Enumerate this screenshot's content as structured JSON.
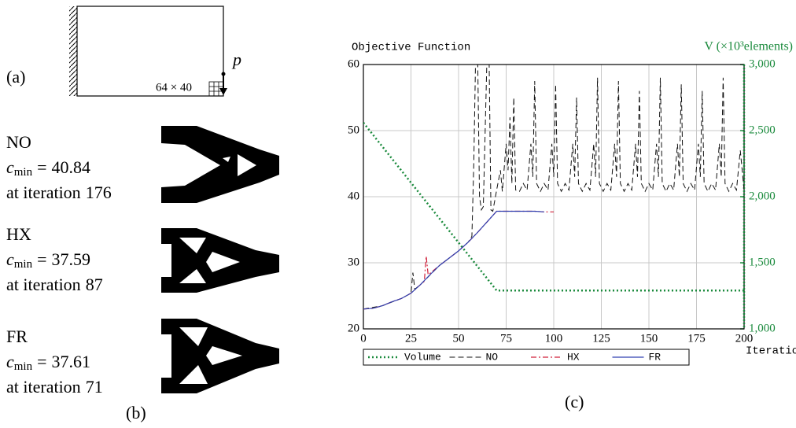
{
  "panel_a": {
    "label": "(a)",
    "load": "p",
    "mesh": "64 × 40"
  },
  "results": [
    {
      "name": "NO",
      "symbol": "c",
      "subscript": "min",
      "relation": "=",
      "value": 40.84,
      "iteration_text": "at iteration",
      "iteration": 176
    },
    {
      "name": "HX",
      "symbol": "c",
      "subscript": "min",
      "relation": "=",
      "value": 37.59,
      "iteration_text": "at iteration",
      "iteration": 87
    },
    {
      "name": "FR",
      "symbol": "c",
      "subscript": "min",
      "relation": "=",
      "value": 37.61,
      "iteration_text": "at iteration",
      "iteration": 71
    }
  ],
  "panel_b": {
    "label": "(b)"
  },
  "panel_c": {
    "label": "(c)"
  },
  "chart_data": {
    "type": "line",
    "y_label": "Objective Function",
    "y2_label": "V (×10³elements)",
    "x_label": "Iterations",
    "xlim": [
      0,
      200
    ],
    "xticks": [
      0,
      25,
      50,
      75,
      100,
      125,
      150,
      175,
      200
    ],
    "ylim": [
      20,
      60
    ],
    "yticks": [
      20,
      30,
      40,
      50,
      60
    ],
    "y2lim": [
      1000,
      3000
    ],
    "y2ticks": [
      {
        "value": 1000,
        "label": "1,000"
      },
      {
        "value": 1500,
        "label": "1,500"
      },
      {
        "value": 2000,
        "label": "2,000"
      },
      {
        "value": 2500,
        "label": "2,500"
      },
      {
        "value": 3000,
        "label": "3,000"
      }
    ],
    "grid": true,
    "legend": "bottom",
    "series": [
      {
        "name": "Volume",
        "color": "#1a8a3c",
        "style": "dotted",
        "axis": "y2",
        "x": [
          0,
          70,
          200
        ],
        "values": [
          2560,
          1290,
          1290
        ]
      },
      {
        "name": "NO",
        "color": "#111111",
        "style": "dashed",
        "x": [
          0,
          10,
          20,
          25,
          26,
          27,
          30,
          40,
          50,
          55,
          57,
          58,
          59,
          60,
          61,
          62,
          63,
          65,
          66,
          67,
          68,
          70,
          72,
          73,
          75,
          76,
          77,
          78,
          79,
          80,
          82,
          84,
          86,
          88,
          89,
          90,
          91,
          93,
          95,
          97,
          99,
          100,
          101,
          102,
          104,
          106,
          108,
          110,
          111,
          112,
          113,
          115,
          117,
          119,
          121,
          122,
          123,
          124,
          126,
          128,
          130,
          132,
          133,
          134,
          135,
          137,
          139,
          141,
          143,
          144,
          145,
          146,
          148,
          150,
          152,
          154,
          155,
          156,
          157,
          159,
          161,
          163,
          165,
          166,
          167,
          168,
          170,
          172,
          174,
          176,
          177,
          178,
          179,
          181,
          183,
          185,
          187,
          188,
          189,
          190,
          192,
          194,
          196,
          198,
          200
        ],
        "values": [
          23,
          23.5,
          24.6,
          25.4,
          28.5,
          26,
          26.7,
          29.6,
          31.8,
          33.1,
          34,
          45,
          62,
          62,
          40,
          38,
          38.5,
          62,
          62,
          38,
          37.8,
          41,
          44,
          40.8,
          48,
          44,
          52,
          42,
          55,
          41,
          40.8,
          42,
          41,
          48,
          43,
          57.5,
          42,
          40.8,
          42,
          41,
          48,
          43,
          57,
          42,
          40.8,
          42,
          41,
          48,
          43,
          55,
          42,
          40.8,
          42,
          41,
          48,
          43,
          58,
          42,
          40.8,
          42,
          41,
          48,
          43,
          57.5,
          42,
          40.8,
          42,
          41,
          48,
          43,
          56,
          42,
          40.8,
          42,
          41,
          48,
          43,
          58,
          42,
          40.8,
          42,
          41,
          48,
          43,
          57,
          42,
          40.8,
          42,
          41,
          48,
          43,
          56,
          42,
          40.8,
          42,
          41,
          48,
          43,
          58,
          42,
          40.8,
          42,
          41,
          47,
          41
        ]
      },
      {
        "name": "HX",
        "color": "#d0203a",
        "style": "dashdot",
        "x": [
          0,
          5,
          10,
          15,
          20,
          25,
          30,
          32,
          33,
          34,
          35,
          40,
          45,
          50,
          55,
          60,
          65,
          70,
          75,
          80,
          85,
          90,
          95,
          100
        ],
        "values": [
          23,
          23.1,
          23.5,
          24.1,
          24.6,
          25.4,
          26.7,
          27.2,
          31,
          28.2,
          28.4,
          29.6,
          30.7,
          31.8,
          33.1,
          34.6,
          36.2,
          37.8,
          37.8,
          37.8,
          37.8,
          37.8,
          37.7,
          37.7
        ]
      },
      {
        "name": "FR",
        "color": "#3040b0",
        "style": "solid",
        "x": [
          0,
          5,
          10,
          15,
          20,
          25,
          30,
          35,
          40,
          45,
          50,
          55,
          60,
          65,
          70,
          75,
          80,
          85,
          90,
          95
        ],
        "values": [
          23,
          23.1,
          23.5,
          24.1,
          24.6,
          25.4,
          26.7,
          28.2,
          29.6,
          30.7,
          31.8,
          33.1,
          34.6,
          36.2,
          37.8,
          37.8,
          37.8,
          37.8,
          37.8,
          37.7
        ]
      }
    ]
  }
}
